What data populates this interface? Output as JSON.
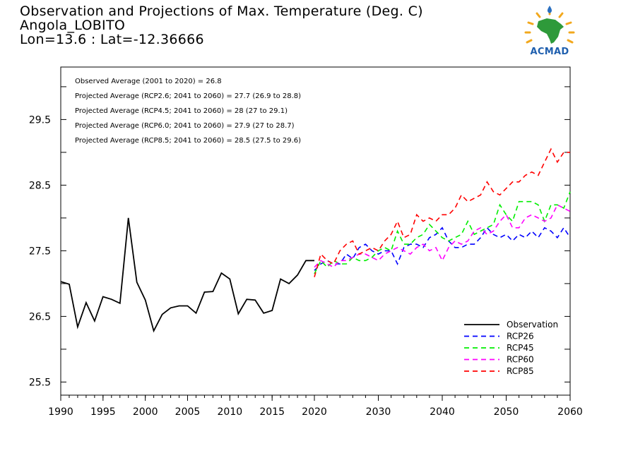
{
  "header": {
    "title_line1": "Observation and Projections of Max. Temperature (Deg. C)",
    "title_line2": "Angola_LOBITO",
    "title_line3": "Lon=13.6 : Lat=-12.36666"
  },
  "logo": {
    "text": "ACMAD"
  },
  "annotations": [
    "Observed Average (2001 to 2020) = 26.8",
    "Projected Average (RCP2.6; 2041 to 2060) = 27.7 (26.9 to 28.8)",
    "Projected Average (RCP4.5; 2041 to 2060) = 28 (27 to 29.1)",
    "Projected Average (RCP6.0; 2041 to 2060) = 27.9 (27 to 28.7)",
    "Projected Average (RCP8.5; 2041 to 2060) = 28.5 (27.5 to 29.6)"
  ],
  "chart_data": {
    "type": "line",
    "title": "Observation and Projections of Max. Temperature (Deg. C)",
    "xlim": [
      1990,
      2060
    ],
    "ylim": [
      25.3,
      30.3
    ],
    "x_ticks": [
      "1990",
      "1995",
      "2000",
      "2005",
      "2010",
      "2015",
      "2020",
      "2030",
      "2040",
      "2050",
      "2060"
    ],
    "y_ticks": [
      "25.5",
      "26.5",
      "27.5",
      "28.5",
      "29.5"
    ],
    "grid": false,
    "legend_position": "bottom-right",
    "colors": {
      "Observation": "#000000",
      "RCP26": "#0000ff",
      "RCP45": "#00ee00",
      "RCP60": "#ff00ff",
      "RCP85": "#ff0000"
    },
    "series": [
      {
        "name": "Observation",
        "style": "solid",
        "x": [
          1990,
          1991,
          1992,
          1993,
          1994,
          1995,
          1996,
          1997,
          1998,
          1999,
          2000,
          2001,
          2002,
          2003,
          2004,
          2005,
          2006,
          2007,
          2008,
          2009,
          2010,
          2011,
          2012,
          2013,
          2014,
          2015,
          2016,
          2017,
          2018,
          2019,
          2020
        ],
        "values": [
          27.03,
          26.99,
          26.34,
          26.71,
          26.43,
          26.8,
          26.76,
          26.7,
          28.0,
          27.02,
          26.75,
          26.28,
          26.53,
          26.63,
          26.66,
          26.66,
          26.55,
          26.87,
          26.88,
          27.16,
          27.07,
          26.54,
          26.76,
          26.75,
          26.55,
          26.59,
          27.07,
          27.0,
          27.13,
          27.35,
          27.35
        ]
      },
      {
        "name": "RCP26",
        "style": "dashed",
        "x": [
          2020,
          2021,
          2022,
          2023,
          2024,
          2025,
          2026,
          2027,
          2028,
          2029,
          2030,
          2031,
          2032,
          2033,
          2034,
          2035,
          2036,
          2037,
          2038,
          2039,
          2040,
          2041,
          2042,
          2043,
          2044,
          2045,
          2046,
          2047,
          2048,
          2049,
          2050,
          2051,
          2052,
          2053,
          2054,
          2055,
          2056,
          2057,
          2058,
          2059,
          2060
        ],
        "values": [
          27.2,
          27.3,
          27.35,
          27.3,
          27.3,
          27.45,
          27.38,
          27.55,
          27.6,
          27.5,
          27.45,
          27.5,
          27.5,
          27.3,
          27.55,
          27.6,
          27.6,
          27.55,
          27.7,
          27.75,
          27.85,
          27.65,
          27.55,
          27.55,
          27.6,
          27.6,
          27.7,
          27.85,
          27.75,
          27.7,
          27.75,
          27.65,
          27.75,
          27.7,
          27.8,
          27.7,
          27.85,
          27.8,
          27.7,
          27.85,
          27.7
        ]
      },
      {
        "name": "RCP45",
        "style": "dashed",
        "x": [
          2020,
          2021,
          2022,
          2023,
          2024,
          2025,
          2026,
          2027,
          2028,
          2029,
          2030,
          2031,
          2032,
          2033,
          2034,
          2035,
          2036,
          2037,
          2038,
          2039,
          2040,
          2041,
          2042,
          2043,
          2044,
          2045,
          2046,
          2047,
          2048,
          2049,
          2050,
          2051,
          2052,
          2053,
          2054,
          2055,
          2056,
          2057,
          2058,
          2059,
          2060
        ],
        "values": [
          27.15,
          27.35,
          27.25,
          27.35,
          27.3,
          27.3,
          27.4,
          27.35,
          27.35,
          27.4,
          27.5,
          27.55,
          27.5,
          27.8,
          27.6,
          27.6,
          27.7,
          27.75,
          27.9,
          27.8,
          27.7,
          27.65,
          27.7,
          27.75,
          27.95,
          27.75,
          27.8,
          27.85,
          27.9,
          28.2,
          28.05,
          27.95,
          28.25,
          28.25,
          28.25,
          28.2,
          27.95,
          28.2,
          28.2,
          28.15,
          28.4
        ]
      },
      {
        "name": "RCP60",
        "style": "dashed",
        "x": [
          2020,
          2021,
          2022,
          2023,
          2024,
          2025,
          2026,
          2027,
          2028,
          2029,
          2030,
          2031,
          2032,
          2033,
          2034,
          2035,
          2036,
          2037,
          2038,
          2039,
          2040,
          2041,
          2042,
          2043,
          2044,
          2045,
          2046,
          2047,
          2048,
          2049,
          2050,
          2051,
          2052,
          2053,
          2054,
          2055,
          2056,
          2057,
          2058,
          2059,
          2060
        ],
        "values": [
          27.25,
          27.35,
          27.3,
          27.25,
          27.35,
          27.35,
          27.4,
          27.45,
          27.45,
          27.4,
          27.35,
          27.45,
          27.5,
          27.55,
          27.5,
          27.45,
          27.55,
          27.6,
          27.5,
          27.55,
          27.35,
          27.55,
          27.65,
          27.6,
          27.65,
          27.8,
          27.85,
          27.75,
          27.8,
          27.95,
          28.05,
          27.85,
          27.85,
          28.0,
          28.05,
          28.0,
          27.95,
          28.0,
          28.2,
          28.15,
          28.1
        ]
      },
      {
        "name": "RCP85",
        "style": "dashed",
        "x": [
          2020,
          2021,
          2022,
          2023,
          2024,
          2025,
          2026,
          2027,
          2028,
          2029,
          2030,
          2031,
          2032,
          2033,
          2034,
          2035,
          2036,
          2037,
          2038,
          2039,
          2040,
          2041,
          2042,
          2043,
          2044,
          2045,
          2046,
          2047,
          2048,
          2049,
          2050,
          2051,
          2052,
          2053,
          2054,
          2055,
          2056,
          2057,
          2058,
          2059,
          2060
        ],
        "values": [
          27.1,
          27.45,
          27.35,
          27.3,
          27.5,
          27.6,
          27.65,
          27.45,
          27.5,
          27.55,
          27.5,
          27.65,
          27.75,
          27.95,
          27.7,
          27.75,
          28.05,
          27.95,
          28.0,
          27.95,
          28.05,
          28.05,
          28.15,
          28.35,
          28.25,
          28.3,
          28.35,
          28.55,
          28.4,
          28.35,
          28.45,
          28.55,
          28.55,
          28.65,
          28.7,
          28.65,
          28.85,
          29.05,
          28.85,
          29.0,
          29.0
        ]
      }
    ]
  }
}
